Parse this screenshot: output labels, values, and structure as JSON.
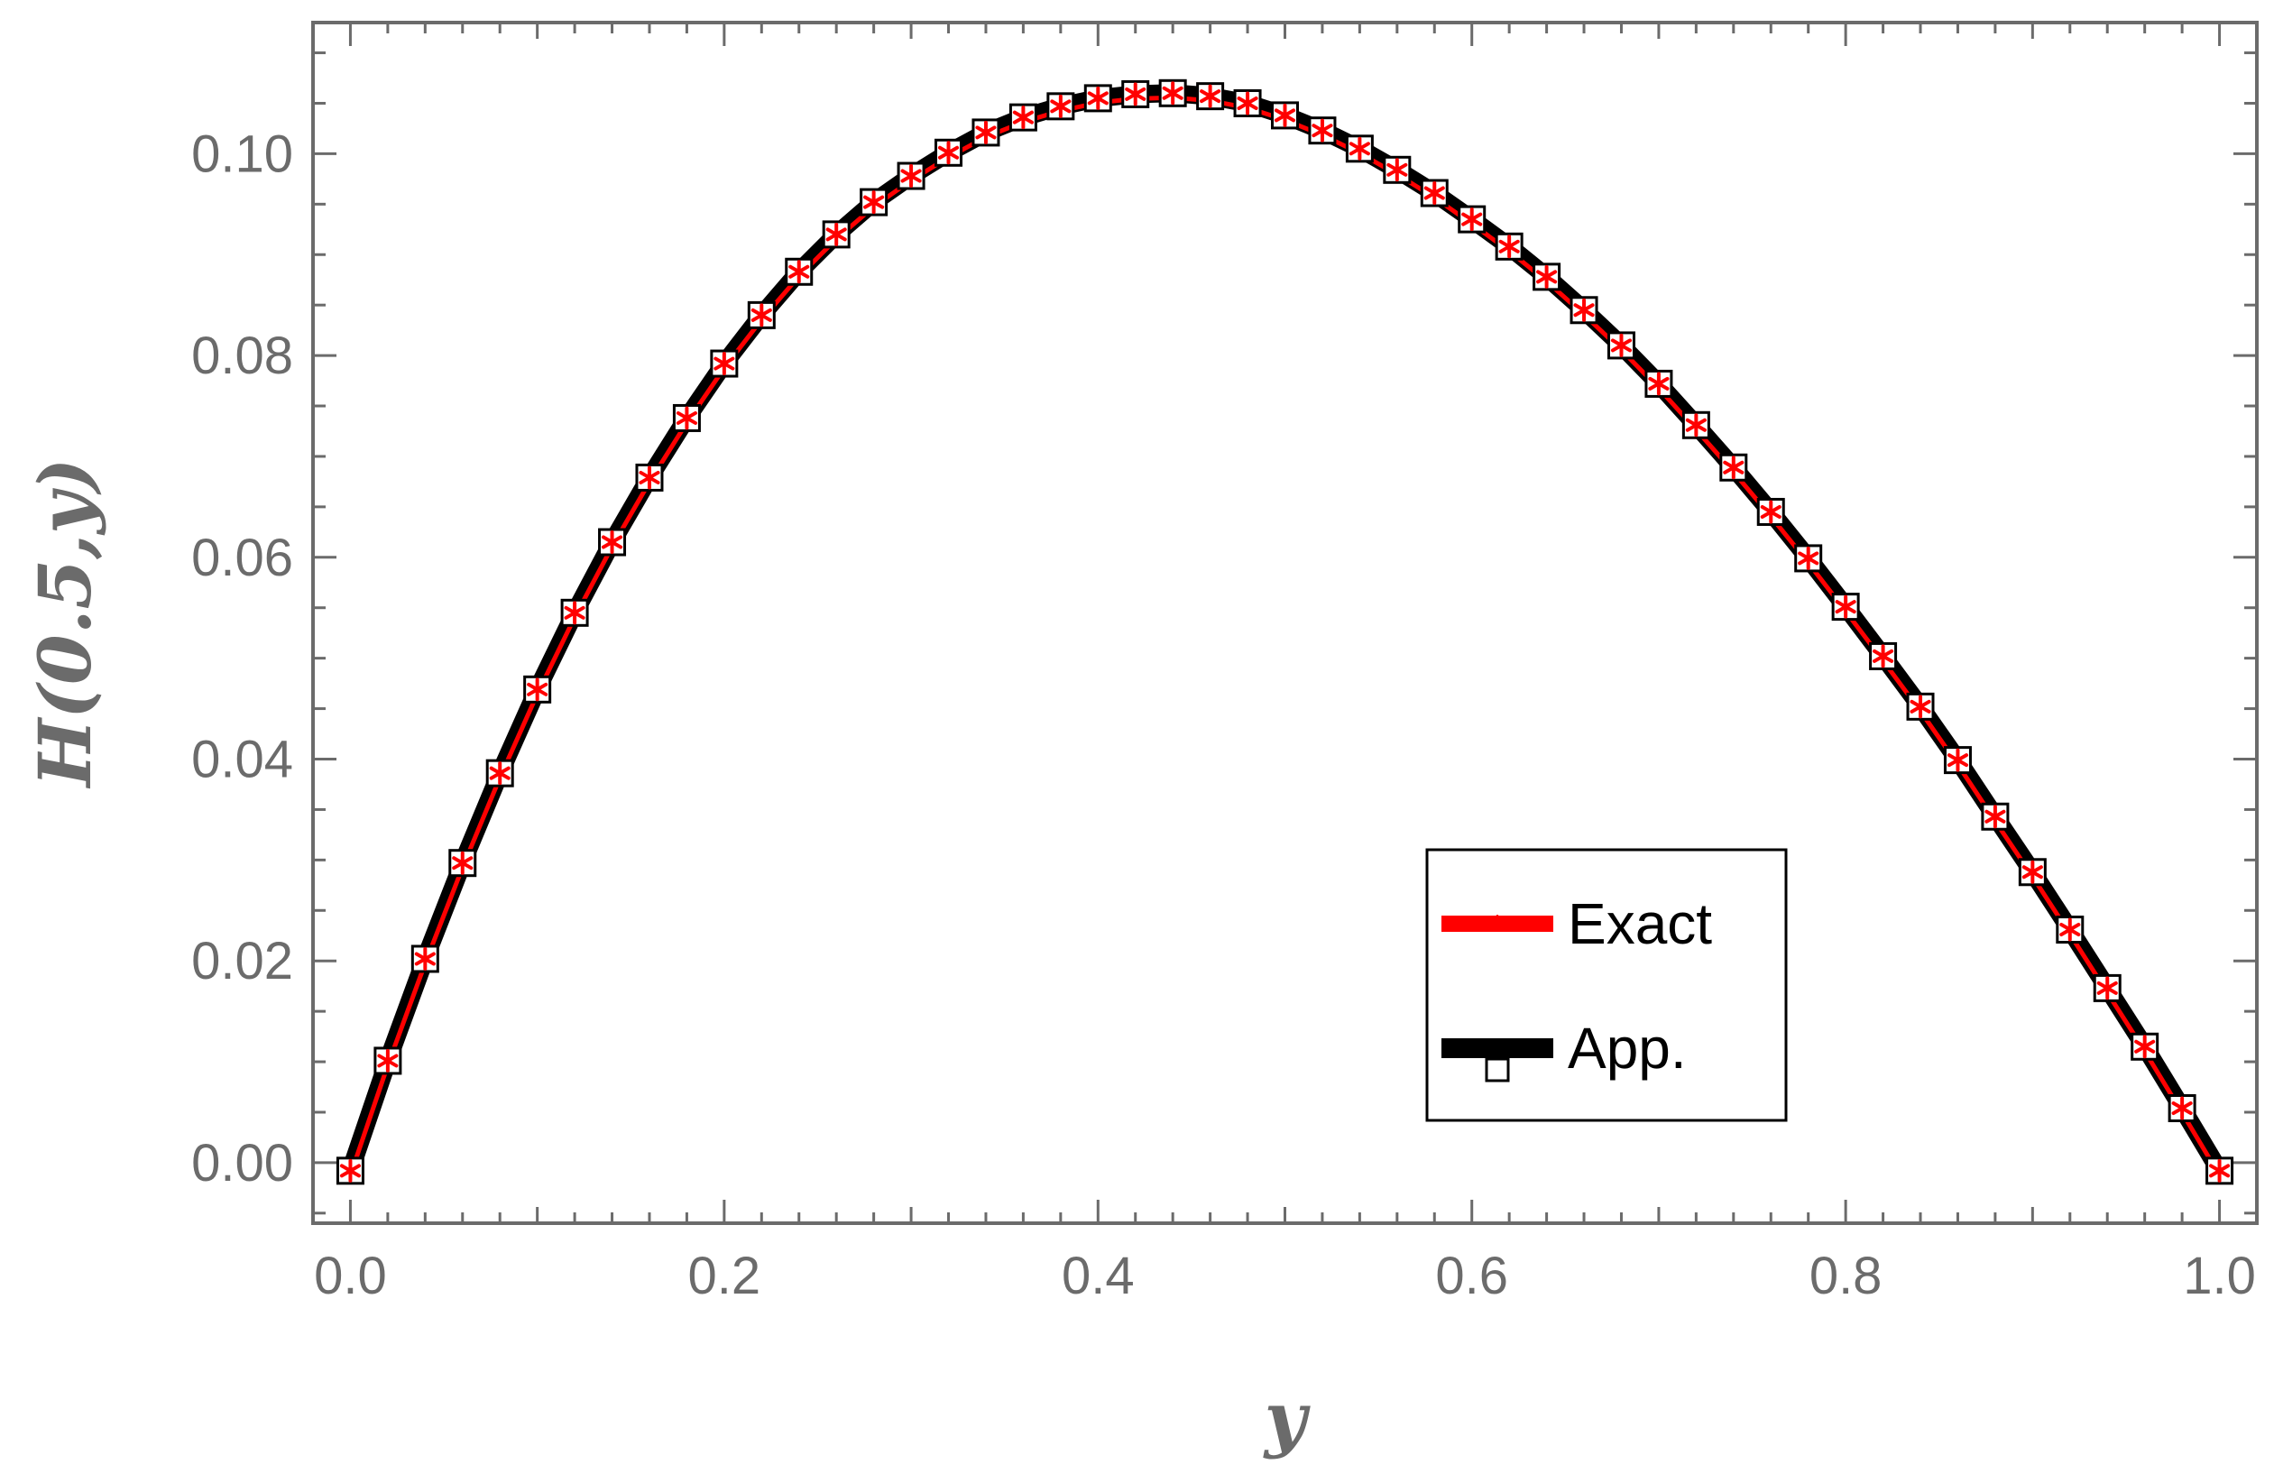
{
  "chart_data": {
    "type": "line",
    "title": "",
    "xlabel": "y",
    "ylabel": "H(0.5,y)",
    "xlim": [
      -0.02,
      1.02
    ],
    "ylim": [
      -0.006,
      0.113
    ],
    "xticks": [
      "0.0",
      "0.2",
      "0.4",
      "0.6",
      "0.8",
      "1.0"
    ],
    "yticks": [
      "0.00",
      "0.02",
      "0.04",
      "0.06",
      "0.08",
      "0.10"
    ],
    "grid": false,
    "legend_position": "lower-right",
    "x": [
      0.0,
      0.02,
      0.04,
      0.06,
      0.08,
      0.1,
      0.12,
      0.14,
      0.16,
      0.18,
      0.2,
      0.22,
      0.24,
      0.26,
      0.28,
      0.3,
      0.32,
      0.34,
      0.36,
      0.38,
      0.4,
      0.42,
      0.44,
      0.46,
      0.48,
      0.5,
      0.52,
      0.54,
      0.56,
      0.58,
      0.6,
      0.62,
      0.64,
      0.66,
      0.68,
      0.7,
      0.72,
      0.74,
      0.76,
      0.78,
      0.8,
      0.82,
      0.84,
      0.86,
      0.88,
      0.9,
      0.92,
      0.94,
      0.96,
      0.98,
      1.0
    ],
    "series": [
      {
        "name": "Exact",
        "color": "#ff0000",
        "marker": "asterisk",
        "values": [
          -0.0008,
          0.0101,
          0.0202,
          0.0297,
          0.0386,
          0.0469,
          0.0545,
          0.0615,
          0.0679,
          0.0738,
          0.0792,
          0.084,
          0.0883,
          0.092,
          0.0952,
          0.0978,
          0.1001,
          0.1021,
          0.1036,
          0.1047,
          0.1055,
          0.1059,
          0.106,
          0.1057,
          0.105,
          0.1038,
          0.1023,
          0.1005,
          0.0984,
          0.0961,
          0.0935,
          0.0908,
          0.0878,
          0.0845,
          0.081,
          0.0772,
          0.0731,
          0.0689,
          0.0645,
          0.0599,
          0.0551,
          0.0502,
          0.0452,
          0.0399,
          0.0343,
          0.0288,
          0.0231,
          0.0173,
          0.0115,
          0.0054,
          -0.0008
        ]
      },
      {
        "name": "App.",
        "color": "#000000",
        "marker": "open-square",
        "values": [
          -0.0008,
          0.0101,
          0.0202,
          0.0297,
          0.0386,
          0.0469,
          0.0545,
          0.0615,
          0.0679,
          0.0738,
          0.0792,
          0.084,
          0.0883,
          0.092,
          0.0952,
          0.0978,
          0.1001,
          0.1021,
          0.1036,
          0.1047,
          0.1055,
          0.1059,
          0.106,
          0.1057,
          0.105,
          0.1038,
          0.1023,
          0.1005,
          0.0984,
          0.0961,
          0.0935,
          0.0908,
          0.0878,
          0.0845,
          0.081,
          0.0772,
          0.0731,
          0.0689,
          0.0645,
          0.0599,
          0.0551,
          0.0502,
          0.0452,
          0.0399,
          0.0343,
          0.0288,
          0.0231,
          0.0173,
          0.0115,
          0.0054,
          -0.0008
        ]
      }
    ]
  }
}
